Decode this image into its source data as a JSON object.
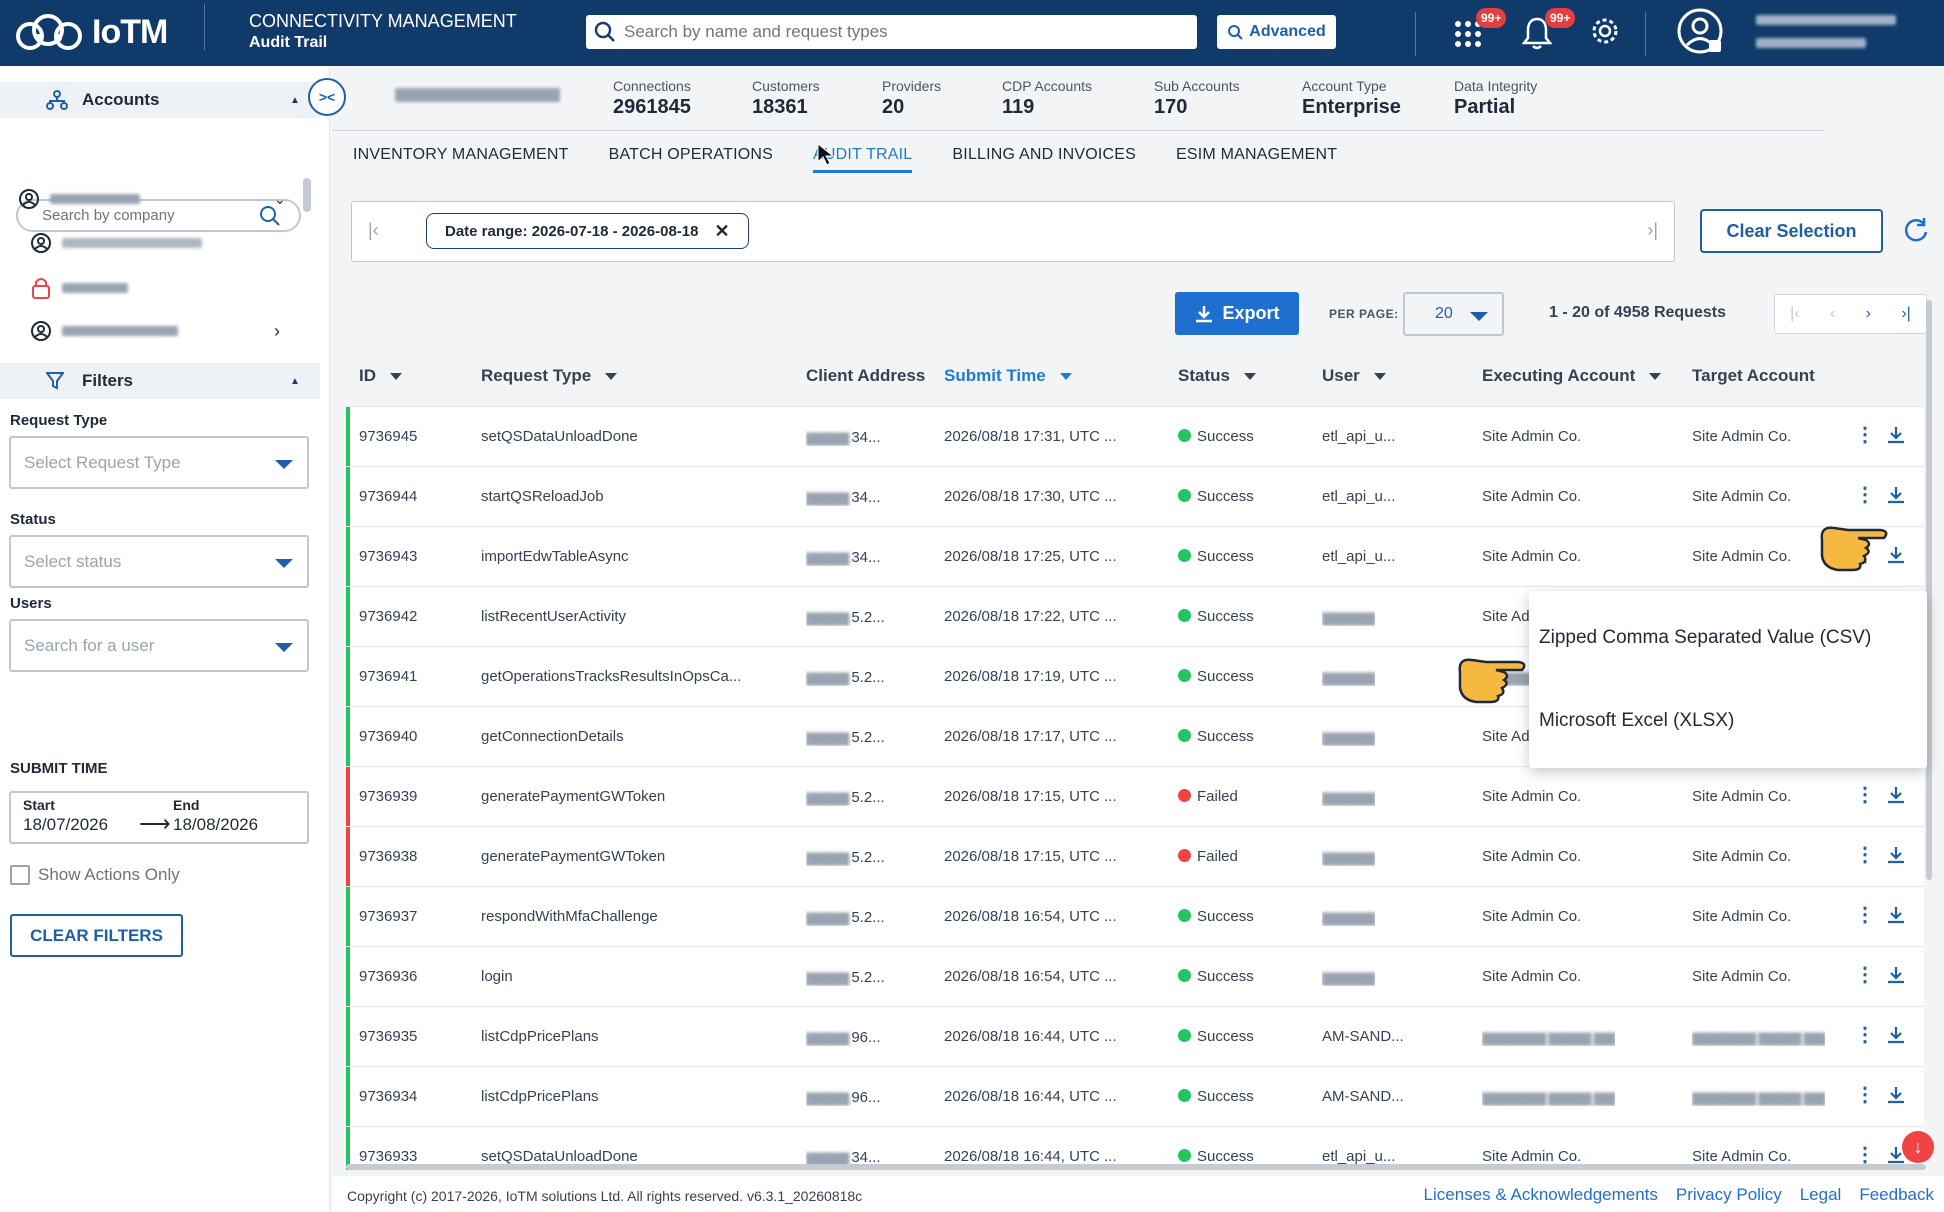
{
  "header": {
    "logo_text": "IoTM",
    "app_title": "CONNECTIVITY MANAGEMENT",
    "app_subtitle": "Audit Trail",
    "search_placeholder": "Search by name and request types",
    "advanced_label": "Advanced",
    "apps_badge": "99+",
    "notifications_badge": "99+"
  },
  "sidebar": {
    "accounts_label": "Accounts",
    "company_search_placeholder": "Search by company",
    "filters_label": "Filters",
    "request_type_label": "Request Type",
    "request_type_placeholder": "Select Request Type",
    "status_label": "Status",
    "status_placeholder": "Select status",
    "users_label": "Users",
    "users_placeholder": "Search for a user",
    "submit_time_label": "SUBMIT TIME",
    "start_label": "Start",
    "start_value": "18/07/2026",
    "end_label": "End",
    "end_value": "18/08/2026",
    "show_actions_label": "Show Actions Only",
    "clear_filters_label": "CLEAR FILTERS"
  },
  "stats": [
    {
      "label": "Connections",
      "value": "2961845"
    },
    {
      "label": "Customers",
      "value": "18361"
    },
    {
      "label": "Providers",
      "value": "20"
    },
    {
      "label": "CDP Accounts",
      "value": "119"
    },
    {
      "label": "Sub Accounts",
      "value": "170"
    },
    {
      "label": "Account Type",
      "value": "Enterprise"
    },
    {
      "label": "Data Integrity",
      "value": "Partial"
    }
  ],
  "tabs": [
    "INVENTORY MANAGEMENT",
    "BATCH OPERATIONS",
    "AUDIT TRAIL",
    "BILLING AND INVOICES",
    "ESIM MANAGEMENT"
  ],
  "active_tab": "AUDIT TRAIL",
  "filter_chip": "Date range: 2026-07-18 - 2026-08-18",
  "clear_selection_label": "Clear Selection",
  "export_label": "Export",
  "per_page_label": "PER PAGE:",
  "per_page_value": "20",
  "page_count": "1 - 20 of 4958 Requests",
  "columns": {
    "id": "ID",
    "request_type": "Request Type",
    "client_address": "Client Address",
    "submit_time": "Submit Time",
    "status": "Status",
    "user": "User",
    "executing_account": "Executing Account",
    "target_account": "Target Account"
  },
  "rows": [
    {
      "id": "9736945",
      "type": "setQSDataUnloadDone",
      "addr": "34...",
      "time": "2026/08/18 17:31, UTC ...",
      "status": "Success",
      "user": "etl_api_u...",
      "exec": "Site Admin Co.",
      "target": "Site Admin Co."
    },
    {
      "id": "9736944",
      "type": "startQSReloadJob",
      "addr": "34...",
      "time": "2026/08/18 17:30, UTC ...",
      "status": "Success",
      "user": "etl_api_u...",
      "exec": "Site Admin Co.",
      "target": "Site Admin Co."
    },
    {
      "id": "9736943",
      "type": "importEdwTableAsync",
      "addr": "34...",
      "time": "2026/08/18 17:25, UTC ...",
      "status": "Success",
      "user": "etl_api_u...",
      "exec": "Site Admin Co.",
      "target": "Site Admin Co."
    },
    {
      "id": "9736942",
      "type": "listRecentUserActivity",
      "addr": "5.2...",
      "time": "2026/08/18 17:22, UTC ...",
      "status": "Success",
      "user": "",
      "exec": "Site Ad",
      "target": ""
    },
    {
      "id": "9736941",
      "type": "getOperationsTracksResultsInOpsCa...",
      "addr": "5.2...",
      "time": "2026/08/18 17:19, UTC ...",
      "status": "Success",
      "user": "",
      "exec": "",
      "target": ""
    },
    {
      "id": "9736940",
      "type": "getConnectionDetails",
      "addr": "5.2...",
      "time": "2026/08/18 17:17, UTC ...",
      "status": "Success",
      "user": "",
      "exec": "Site Ad",
      "target": ""
    },
    {
      "id": "9736939",
      "type": "generatePaymentGWToken",
      "addr": "5.2...",
      "time": "2026/08/18 17:15, UTC ...",
      "status": "Failed",
      "user": "",
      "exec": "Site Admin Co.",
      "target": "Site Admin Co."
    },
    {
      "id": "9736938",
      "type": "generatePaymentGWToken",
      "addr": "5.2...",
      "time": "2026/08/18 17:15, UTC ...",
      "status": "Failed",
      "user": "",
      "exec": "Site Admin Co.",
      "target": "Site Admin Co."
    },
    {
      "id": "9736937",
      "type": "respondWithMfaChallenge",
      "addr": "5.2...",
      "time": "2026/08/18 16:54, UTC ...",
      "status": "Success",
      "user": "",
      "exec": "Site Admin Co.",
      "target": "Site Admin Co."
    },
    {
      "id": "9736936",
      "type": "login",
      "addr": "5.2...",
      "time": "2026/08/18 16:54, UTC ...",
      "status": "Success",
      "user": "",
      "exec": "Site Admin Co.",
      "target": "Site Admin Co."
    },
    {
      "id": "9736935",
      "type": "listCdpPricePlans",
      "addr": "96...",
      "time": "2026/08/18 16:44, UTC ...",
      "status": "Success",
      "user": "AM-SAND...",
      "exec": "",
      "target": ""
    },
    {
      "id": "9736934",
      "type": "listCdpPricePlans",
      "addr": "96...",
      "time": "2026/08/18 16:44, UTC ...",
      "status": "Success",
      "user": "AM-SAND...",
      "exec": "",
      "target": ""
    },
    {
      "id": "9736933",
      "type": "setQSDataUnloadDone",
      "addr": "34...",
      "time": "2026/08/18 16:44, UTC ...",
      "status": "Success",
      "user": "etl_api_u...",
      "exec": "Site Admin Co.",
      "target": "Site Admin Co."
    }
  ],
  "export_menu": {
    "csv_label": "Zipped Comma Separated Value (CSV)",
    "xlsx_label": "Microsoft Excel (XLSX)"
  },
  "footer": {
    "copyright": "Copyright (c) 2017-2026, IoTM solutions Ltd. All rights reserved. v6.3.1_20260818c",
    "links": [
      "Licenses & Acknowledgements",
      "Privacy Policy",
      "Legal",
      "Feedback"
    ]
  },
  "colors": {
    "header_bg": "#0f3a69",
    "accent": "#1f6fd0",
    "success": "#22c55e",
    "failed": "#ef4444"
  }
}
